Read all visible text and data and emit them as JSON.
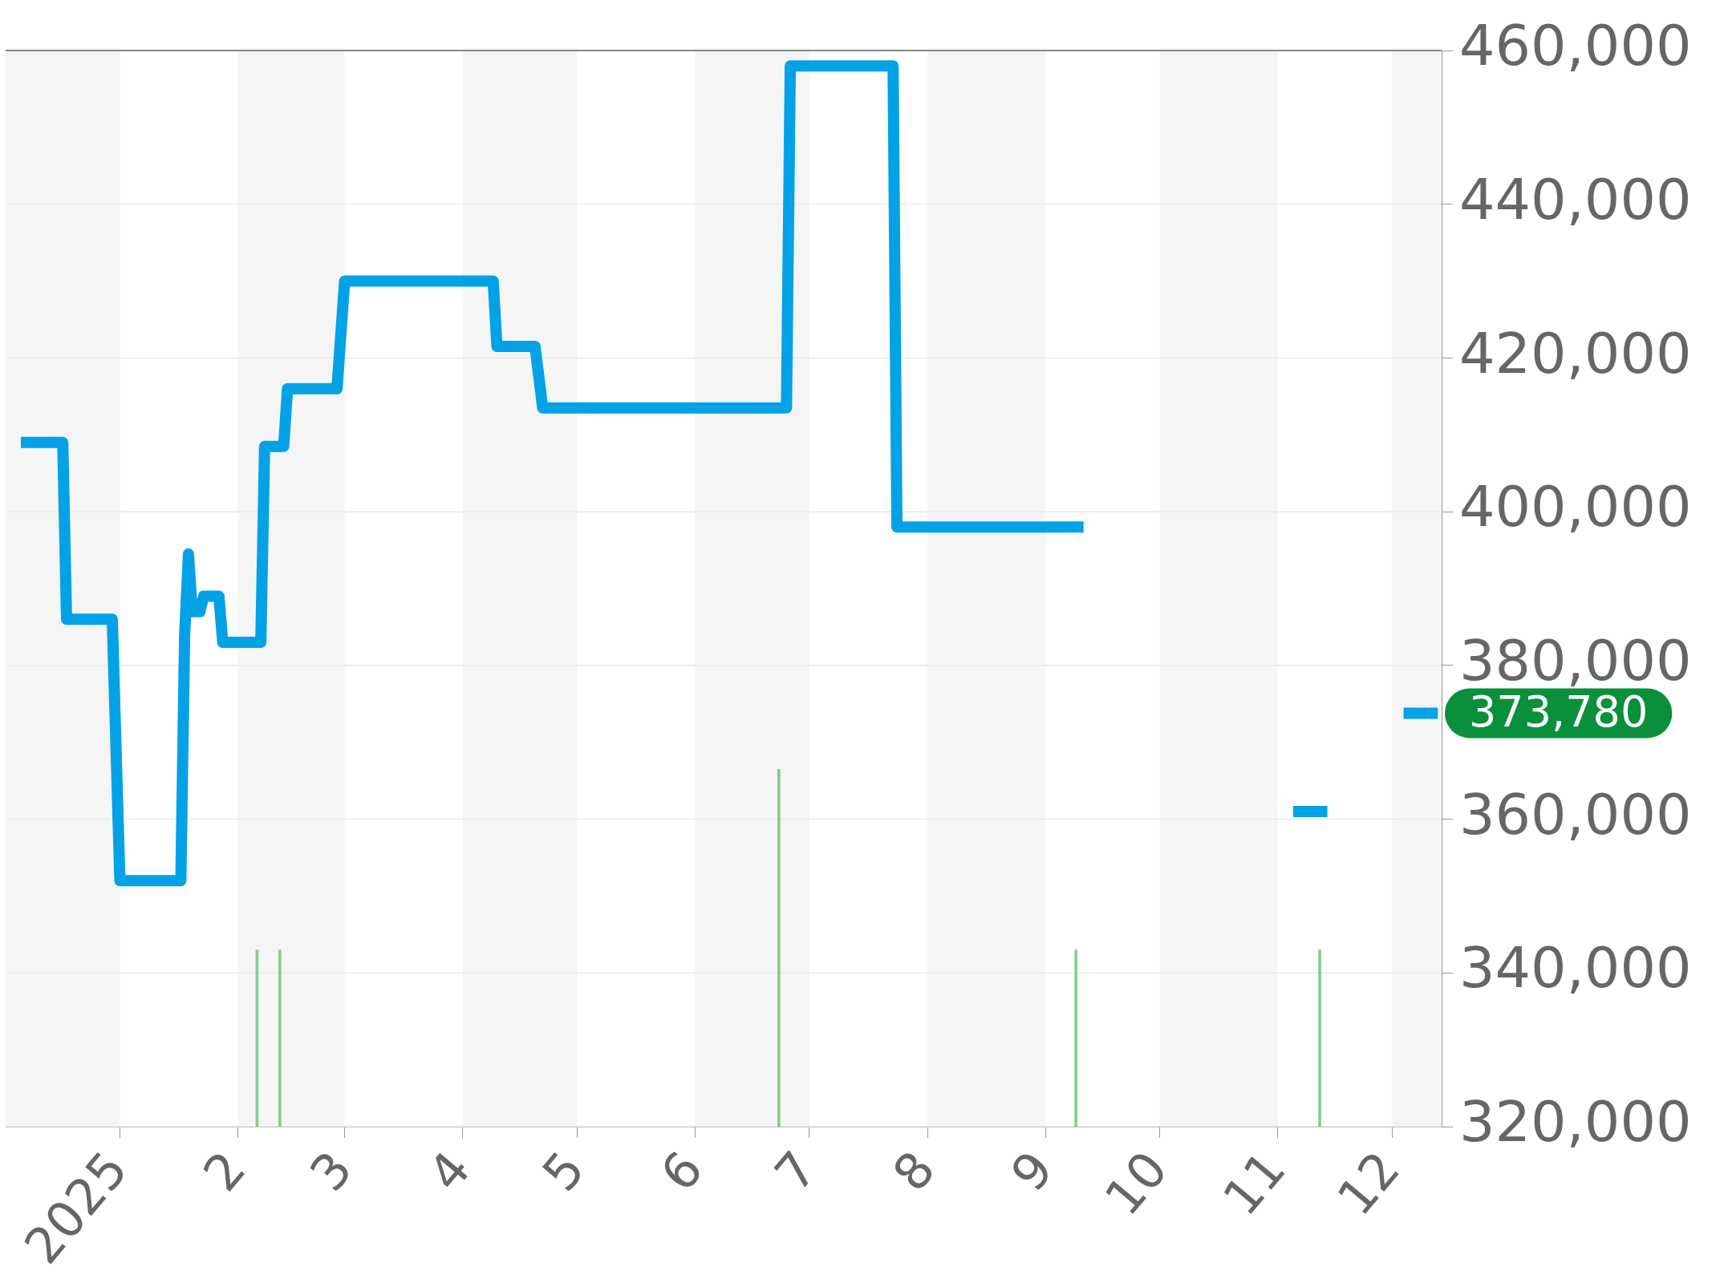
{
  "chart_data": {
    "type": "line",
    "xlim": [
      "2024-12-02",
      "2025-12-14"
    ],
    "xticks": [
      {
        "value": "2025-01-01",
        "label": "2025"
      },
      {
        "value": "2025-02-01",
        "label": "2"
      },
      {
        "value": "2025-03-01",
        "label": "3"
      },
      {
        "value": "2025-04-01",
        "label": "4"
      },
      {
        "value": "2025-05-01",
        "label": "5"
      },
      {
        "value": "2025-06-01",
        "label": "6"
      },
      {
        "value": "2025-07-01",
        "label": "7"
      },
      {
        "value": "2025-08-01",
        "label": "8"
      },
      {
        "value": "2025-09-01",
        "label": "9"
      },
      {
        "value": "2025-10-01",
        "label": "10"
      },
      {
        "value": "2025-11-01",
        "label": "11"
      },
      {
        "value": "2025-12-01",
        "label": "12"
      }
    ],
    "ylim": [
      320000,
      460000
    ],
    "yticks": [
      {
        "value": 320000,
        "label": "320,000"
      },
      {
        "value": 340000,
        "label": "340,000"
      },
      {
        "value": 360000,
        "label": "360,000"
      },
      {
        "value": 380000,
        "label": "380,000"
      },
      {
        "value": 400000,
        "label": "400,000"
      },
      {
        "value": 420000,
        "label": "420,000"
      },
      {
        "value": 440000,
        "label": "440,000"
      },
      {
        "value": 460000,
        "label": "460,000"
      }
    ],
    "grid": "y",
    "series": [
      {
        "color": "#03a2e6",
        "x": [
          "2024-12-06",
          "2024-12-17",
          "2024-12-18",
          "2024-12-30",
          "2025-01-01",
          "2025-01-17",
          "2025-01-18",
          "2025-01-19",
          "2025-01-20",
          "2025-01-22",
          "2025-01-23",
          "2025-01-27",
          "2025-01-28",
          "2025-02-07",
          "2025-02-08",
          "2025-02-13",
          "2025-02-14",
          "2025-02-27",
          "2025-03-01",
          "2025-04-09",
          "2025-04-10",
          "2025-04-20",
          "2025-04-22",
          "2025-06-25",
          "2025-06-26",
          "2025-07-23",
          "2025-07-24",
          "2025-09-11",
          "2025-10-01",
          "2025-11-05",
          "2025-11-14",
          "2025-11-20",
          "2025-12-04",
          "2025-12-13"
        ],
        "values": [
          409000,
          409000,
          386000,
          386000,
          352000,
          352000,
          384000,
          394500,
          387000,
          387000,
          389000,
          389000,
          383000,
          383000,
          408500,
          408500,
          416000,
          416000,
          430000,
          430000,
          421500,
          421500,
          413500,
          413500,
          458000,
          458000,
          398000,
          398000,
          null,
          361000,
          361000,
          null,
          373780,
          373780
        ]
      },
      {
        "type": "bar",
        "color": "#7fd08a",
        "x": [
          "2025-02-06",
          "2025-02-12",
          "2025-06-23",
          "2025-09-09",
          "2025-11-12"
        ],
        "values": [
          343000,
          343000,
          366500,
          343000,
          343000
        ]
      }
    ],
    "bands": [
      {
        "axis": "x",
        "from": "2024-12-02",
        "to": "2025-01-01",
        "color": "#f5f5f5"
      },
      {
        "axis": "x",
        "from": "2025-02-01",
        "to": "2025-03-01",
        "color": "#f5f5f5"
      },
      {
        "axis": "x",
        "from": "2025-04-01",
        "to": "2025-05-01",
        "color": "#f5f5f5"
      },
      {
        "axis": "x",
        "from": "2025-06-01",
        "to": "2025-07-01",
        "color": "#f5f5f5"
      },
      {
        "axis": "x",
        "from": "2025-08-01",
        "to": "2025-09-01",
        "color": "#f5f5f5"
      },
      {
        "axis": "x",
        "from": "2025-10-01",
        "to": "2025-11-01",
        "color": "#f5f5f5"
      },
      {
        "axis": "x",
        "from": "2025-12-01",
        "to": "2025-12-14",
        "color": "#f5f5f5"
      }
    ],
    "annotations": [
      "373,780"
    ],
    "legend": false
  }
}
